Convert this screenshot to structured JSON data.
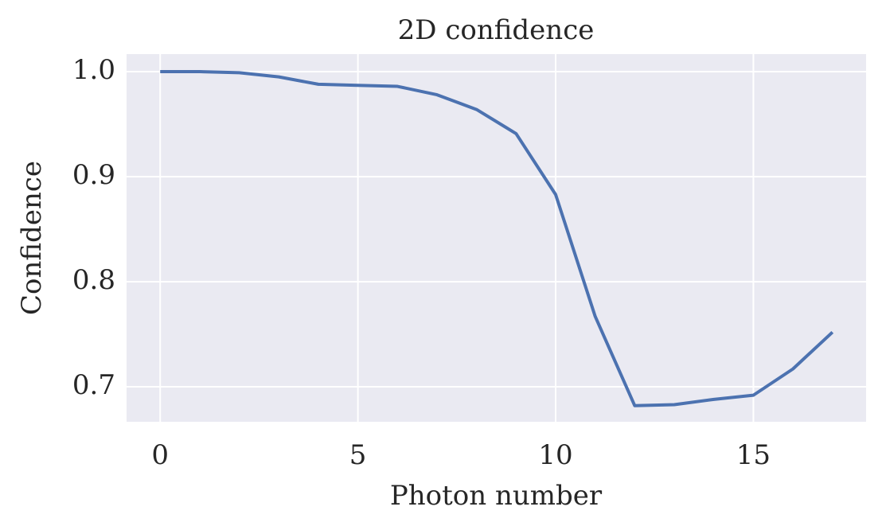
{
  "chart_data": {
    "type": "line",
    "title": "2D confidence",
    "x_label": "Photon number",
    "y_label": "Confidence",
    "x": [
      0,
      1,
      2,
      3,
      4,
      5,
      6,
      7,
      8,
      9,
      10,
      11,
      12,
      13,
      14,
      15,
      16,
      17
    ],
    "series": [
      {
        "name": "Confidence",
        "color": "#4c72b0",
        "values": [
          1.0,
          1.0,
          0.999,
          0.995,
          0.988,
          0.987,
          0.986,
          0.978,
          0.964,
          0.941,
          0.883,
          0.767,
          0.682,
          0.683,
          0.688,
          0.692,
          0.717,
          0.752
        ]
      }
    ],
    "xlim": [
      -0.85,
      17.85
    ],
    "ylim": [
      0.6667,
      1.0167
    ],
    "xticks": [
      0,
      5,
      10,
      15
    ],
    "yticks": [
      {
        "value": 1.0,
        "label": "1.0"
      },
      0.9,
      0.8,
      0.7
    ],
    "grid": true
  }
}
